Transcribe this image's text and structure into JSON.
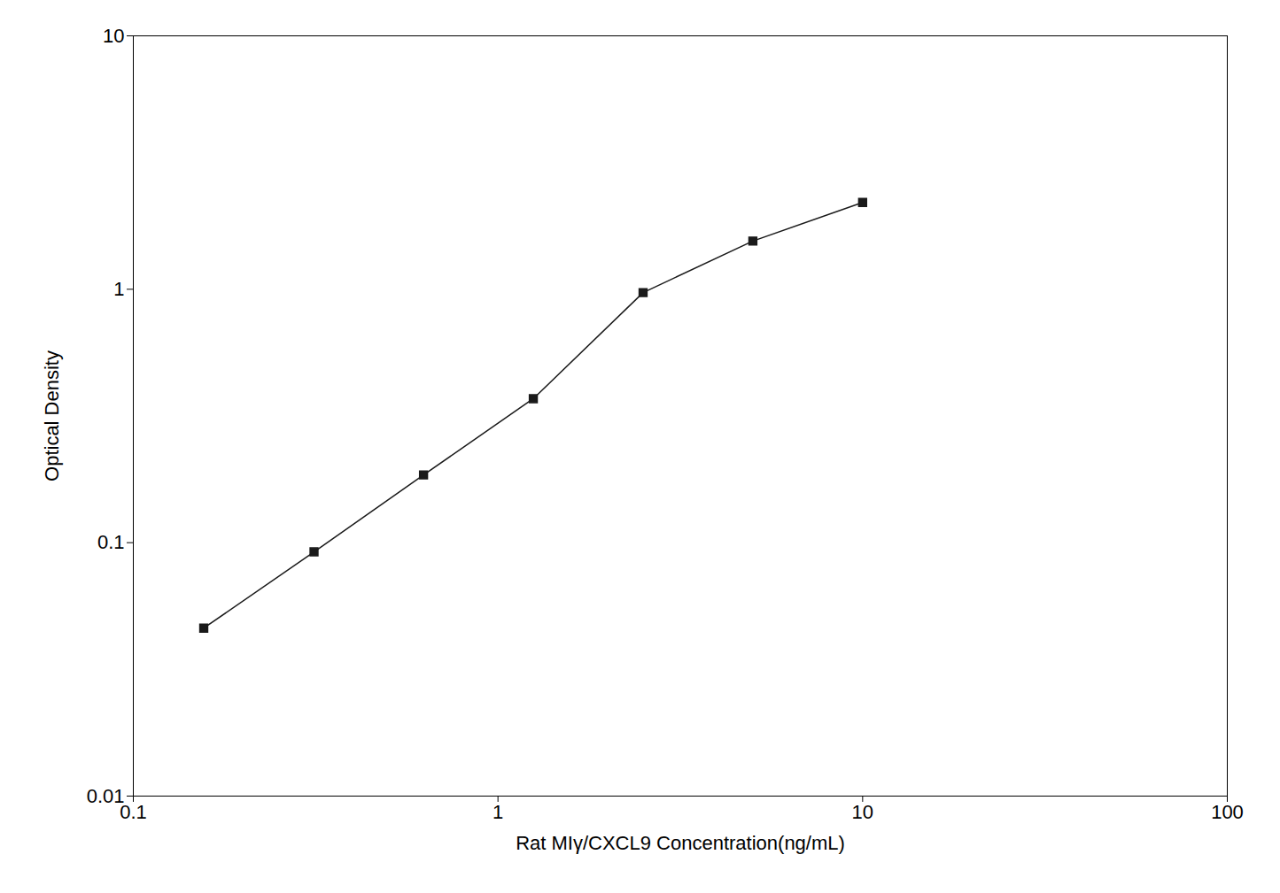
{
  "chart_data": {
    "type": "line",
    "x": [
      0.156,
      0.313,
      0.625,
      1.25,
      2.5,
      5.0,
      10.0
    ],
    "values": [
      0.046,
      0.092,
      0.185,
      0.37,
      0.97,
      1.55,
      2.2
    ],
    "xlabel": "Rat MIγ/CXCL9 Concentration(ng/mL)",
    "ylabel": "Optical Density",
    "xlim": [
      0.1,
      100
    ],
    "ylim": [
      0.01,
      10
    ],
    "xticks": [
      0.1,
      1,
      10,
      100
    ],
    "yticks": [
      0.01,
      0.1,
      1,
      10
    ],
    "log": true,
    "color": "#1a1a1a",
    "marker": "square",
    "grid": false
  }
}
